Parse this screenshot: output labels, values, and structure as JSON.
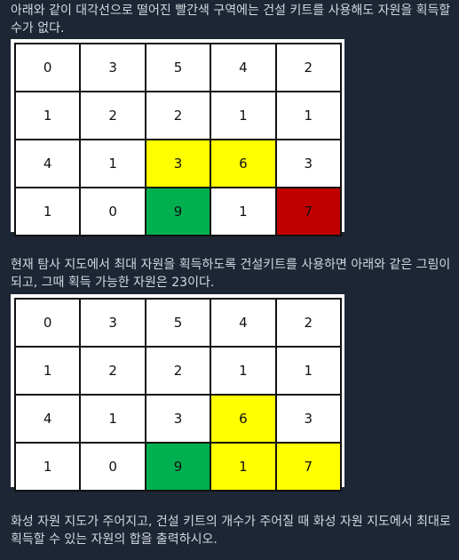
{
  "text": {
    "para1": "아래와 같이 대각선으로 떨어진 빨간색 구역에는 건설 키트를 사용해도 자원을 획득할 수가 없다.",
    "para2": "현재 탐사 지도에서 최대 자원을 획득하도록 건설키트를 사용하면 아래와 같은 그림이 되고, 그때 획득 가능한 자원은 23이다.",
    "para3": "화성 자원 지도가 주어지고, 건설 키트의 개수가 주어질 때 화성 자원 지도에서 최대로 획득할 수 있는 자원의 합을 출력하시오."
  },
  "colors": {
    "white": "#ffffff",
    "yellow": "#ffff00",
    "green": "#00b050",
    "red": "#c00000"
  },
  "grid1": [
    [
      {
        "v": "0",
        "c": "white"
      },
      {
        "v": "3",
        "c": "white"
      },
      {
        "v": "5",
        "c": "white"
      },
      {
        "v": "4",
        "c": "white"
      },
      {
        "v": "2",
        "c": "white"
      }
    ],
    [
      {
        "v": "1",
        "c": "white"
      },
      {
        "v": "2",
        "c": "white"
      },
      {
        "v": "2",
        "c": "white"
      },
      {
        "v": "1",
        "c": "white"
      },
      {
        "v": "1",
        "c": "white"
      }
    ],
    [
      {
        "v": "4",
        "c": "white"
      },
      {
        "v": "1",
        "c": "white"
      },
      {
        "v": "3",
        "c": "yellow"
      },
      {
        "v": "6",
        "c": "yellow"
      },
      {
        "v": "3",
        "c": "white"
      }
    ],
    [
      {
        "v": "1",
        "c": "white"
      },
      {
        "v": "0",
        "c": "white"
      },
      {
        "v": "9",
        "c": "green"
      },
      {
        "v": "1",
        "c": "white"
      },
      {
        "v": "7",
        "c": "red"
      }
    ]
  ],
  "grid2": [
    [
      {
        "v": "0",
        "c": "white"
      },
      {
        "v": "3",
        "c": "white"
      },
      {
        "v": "5",
        "c": "white"
      },
      {
        "v": "4",
        "c": "white"
      },
      {
        "v": "2",
        "c": "white"
      }
    ],
    [
      {
        "v": "1",
        "c": "white"
      },
      {
        "v": "2",
        "c": "white"
      },
      {
        "v": "2",
        "c": "white"
      },
      {
        "v": "1",
        "c": "white"
      },
      {
        "v": "1",
        "c": "white"
      }
    ],
    [
      {
        "v": "4",
        "c": "white"
      },
      {
        "v": "1",
        "c": "white"
      },
      {
        "v": "3",
        "c": "white"
      },
      {
        "v": "6",
        "c": "yellow"
      },
      {
        "v": "3",
        "c": "white"
      }
    ],
    [
      {
        "v": "1",
        "c": "white"
      },
      {
        "v": "0",
        "c": "white"
      },
      {
        "v": "9",
        "c": "green"
      },
      {
        "v": "1",
        "c": "yellow"
      },
      {
        "v": "7",
        "c": "yellow"
      }
    ]
  ]
}
